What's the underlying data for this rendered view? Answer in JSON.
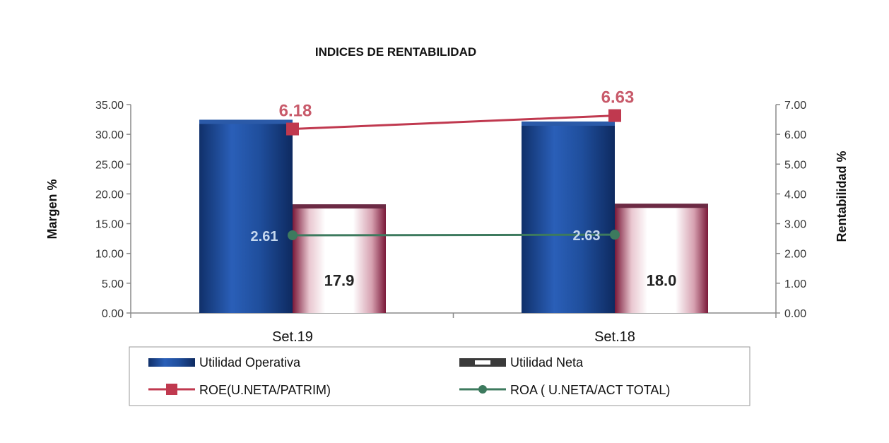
{
  "chart_data": {
    "type": "bar",
    "title": "INDICES DE RENTABILIDAD",
    "categories": [
      "Set.19",
      "Set.18"
    ],
    "y_left": {
      "label": "Margen %",
      "range": [
        0,
        35
      ],
      "ticks": [
        0,
        5,
        10,
        15,
        20,
        25,
        30,
        35
      ],
      "tick_labels": [
        "0.00",
        "5.00",
        "10.00",
        "15.00",
        "20.00",
        "25.00",
        "30.00",
        "35.00"
      ]
    },
    "y_right": {
      "label": "Rentabilidad %",
      "range": [
        0,
        7
      ],
      "ticks": [
        0,
        1,
        2,
        3,
        4,
        5,
        6,
        7
      ],
      "tick_labels": [
        "0.00",
        "1.00",
        "2.00",
        "3.00",
        "4.00",
        "5.00",
        "6.00",
        "7.00"
      ]
    },
    "series": [
      {
        "name": "Utilidad Operativa",
        "kind": "bar",
        "axis": "left",
        "values": [
          32.1,
          31.8
        ],
        "data_labels": [
          "",
          ""
        ],
        "color": "#1f4e9c"
      },
      {
        "name": "Utilidad Neta",
        "kind": "bar",
        "axis": "left",
        "values": [
          17.9,
          18.0
        ],
        "data_labels": [
          "17.9",
          "18.0"
        ],
        "color": "#8b2246"
      },
      {
        "name": "ROE(U.NETA/PATRIM)",
        "kind": "line",
        "axis": "right",
        "values": [
          6.18,
          6.63
        ],
        "data_labels": [
          "6.18",
          "6.63"
        ],
        "color": "#c0394f"
      },
      {
        "name": "ROA ( U.NETA/ACT  TOTAL)",
        "kind": "line",
        "axis": "right",
        "values": [
          2.61,
          2.63
        ],
        "data_labels": [
          "2.61",
          "2.63"
        ],
        "color": "#3d7a5e"
      }
    ],
    "legend_position": "bottom",
    "grid": false
  }
}
